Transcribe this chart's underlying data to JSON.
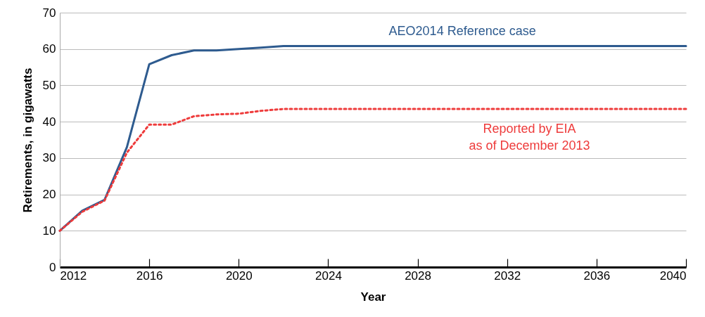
{
  "chart_data": {
    "type": "line",
    "xlabel": "Year",
    "ylabel": "Retirements, in gigawatts",
    "x": [
      2012,
      2013,
      2014,
      2015,
      2016,
      2017,
      2018,
      2019,
      2020,
      2021,
      2022,
      2023,
      2024,
      2025,
      2026,
      2027,
      2028,
      2029,
      2030,
      2031,
      2032,
      2033,
      2034,
      2035,
      2036,
      2037,
      2038,
      2039,
      2040
    ],
    "series": [
      {
        "name": "AEO2014 Reference case",
        "color": "#2e5b8f",
        "line_style": "solid",
        "values": [
          10,
          15.5,
          18.5,
          33,
          55.8,
          58.3,
          59.6,
          59.6,
          60,
          60.4,
          60.8,
          60.8,
          60.8,
          60.8,
          60.8,
          60.8,
          60.8,
          60.8,
          60.8,
          60.8,
          60.8,
          60.8,
          60.8,
          60.8,
          60.8,
          60.8,
          60.8,
          60.8,
          60.8
        ]
      },
      {
        "name": "Reported by EIA\nas of December 2013",
        "color": "#ee3b3b",
        "line_style": "dotted",
        "values": [
          10,
          15.2,
          18.3,
          31.5,
          39.2,
          39.2,
          41.5,
          42,
          42.2,
          43,
          43.5,
          43.5,
          43.5,
          43.5,
          43.5,
          43.5,
          43.5,
          43.5,
          43.5,
          43.5,
          43.5,
          43.5,
          43.5,
          43.5,
          43.5,
          43.5,
          43.5,
          43.5,
          43.5
        ]
      }
    ],
    "xlim": [
      2012,
      2040
    ],
    "xticks": [
      2012,
      2016,
      2020,
      2024,
      2028,
      2032,
      2036,
      2040
    ],
    "ylim": [
      0,
      70
    ],
    "yticks": [
      0,
      10,
      20,
      30,
      40,
      50,
      60,
      70
    ],
    "grid": "y"
  }
}
